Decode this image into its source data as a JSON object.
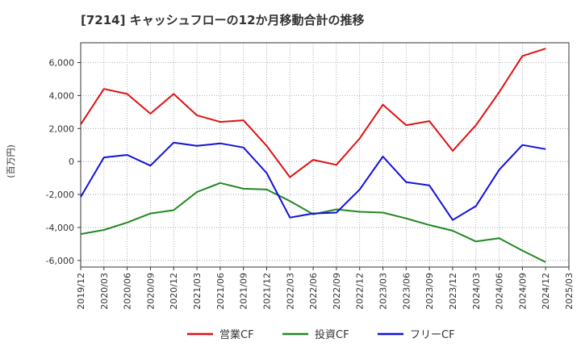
{
  "chart_data": {
    "type": "line",
    "title": "[7214]  キャッシュフローの12か月移動合計の推移",
    "xlabel": "",
    "ylabel": "(百万円)",
    "ylim": [
      -6400,
      7200
    ],
    "yticks": [
      -6000,
      -4000,
      -2000,
      0,
      2000,
      4000,
      6000
    ],
    "ytick_labels": [
      "-6,000",
      "-4,000",
      "-2,000",
      "0",
      "2,000",
      "4,000",
      "6,000"
    ],
    "x": [
      "2019/12",
      "2020/03",
      "2020/06",
      "2020/09",
      "2020/12",
      "2021/03",
      "2021/06",
      "2021/09",
      "2021/12",
      "2022/03",
      "2022/06",
      "2022/09",
      "2022/12",
      "2023/03",
      "2023/06",
      "2023/09",
      "2023/12",
      "2024/03",
      "2024/06",
      "2024/09",
      "2024/12",
      "2025/03"
    ],
    "grid": true,
    "legend_position": "bottom-center",
    "series": [
      {
        "name": "営業CF",
        "color": "#dd1111",
        "values": [
          2250,
          4400,
          4100,
          2900,
          4100,
          2800,
          2400,
          2500,
          950,
          -950,
          100,
          -200,
          1400,
          3450,
          2200,
          2450,
          650,
          2200,
          4200,
          6400,
          6850,
          null
        ]
      },
      {
        "name": "投資CF",
        "color": "#228822",
        "values": [
          -4400,
          -4150,
          -3700,
          -3150,
          -2950,
          -1850,
          -1300,
          -1650,
          -1700,
          -2400,
          -3200,
          -2900,
          -3050,
          -3100,
          -3450,
          -3850,
          -4200,
          -4850,
          -4650,
          -5400,
          -6100,
          null
        ]
      },
      {
        "name": "フリーCF",
        "color": "#1111dd",
        "values": [
          -2150,
          250,
          400,
          -250,
          1150,
          950,
          1100,
          850,
          -700,
          -3400,
          -3150,
          -3100,
          -1700,
          300,
          -1250,
          -1450,
          -3550,
          -2700,
          -500,
          1000,
          750,
          null
        ]
      }
    ]
  }
}
